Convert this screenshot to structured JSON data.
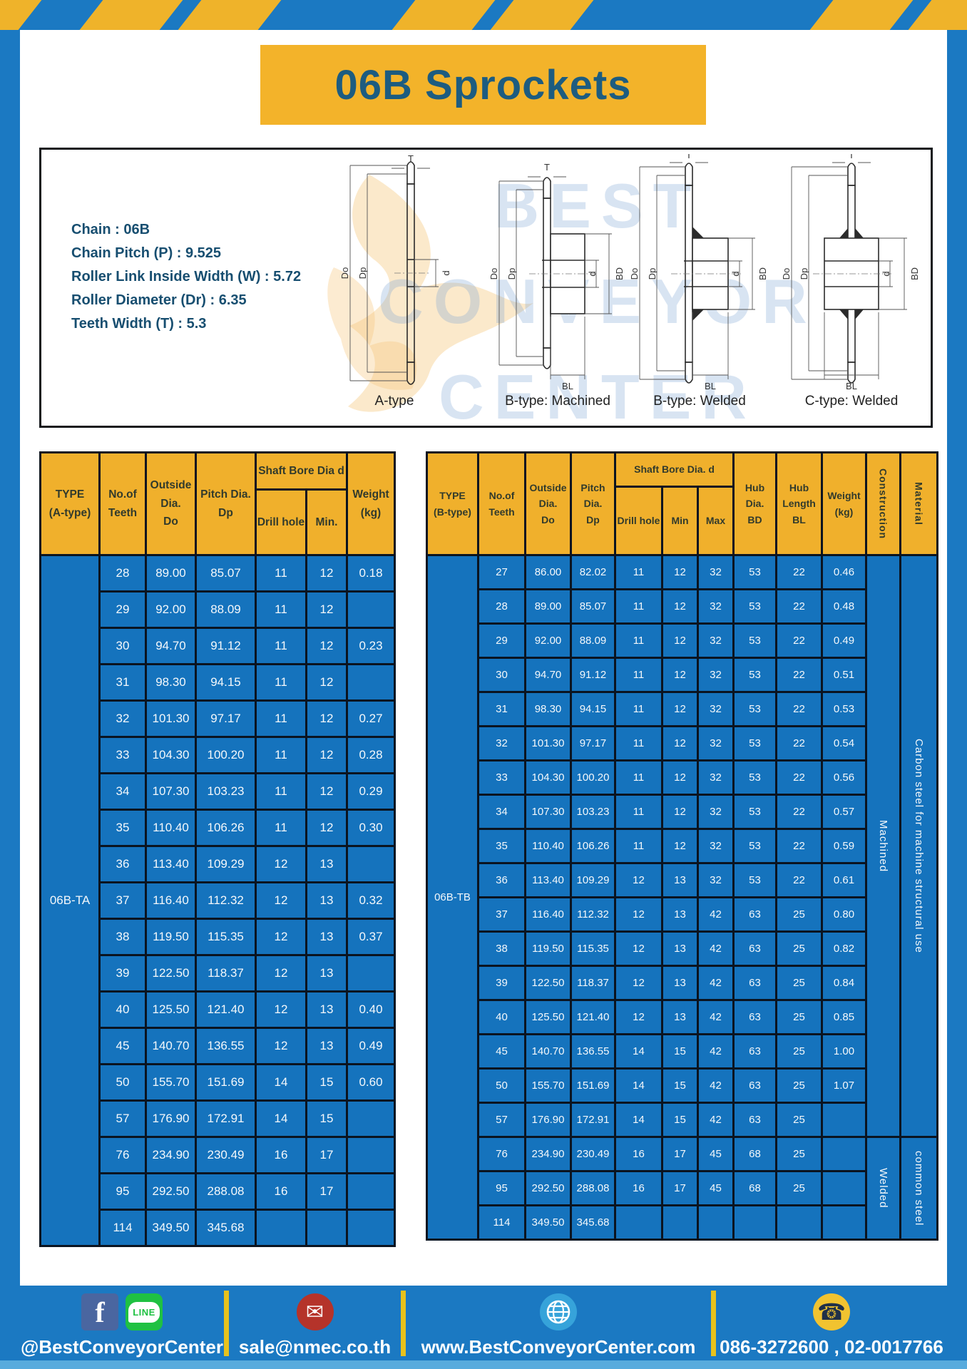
{
  "header": {
    "title": "06B Sprockets"
  },
  "specs": {
    "lines": [
      "Chain : 06B",
      "Chain Pitch (P) : 9.525",
      "Roller Link Inside Width (W) : 5.72",
      "Roller Diameter (Dr) : 6.35",
      "Teeth Width (T) : 5.3"
    ]
  },
  "diagrams": {
    "watermark": [
      "BEST",
      "CONVEYOR",
      "CENTER"
    ],
    "captions": [
      "A-type",
      "B-type: Machined",
      "B-type: Welded",
      "C-type: Welded"
    ],
    "dims": {
      "t": "T",
      "dia_o": "Do",
      "dia_p": "Dp",
      "d": "d",
      "bd": "BD",
      "bl": "BL"
    }
  },
  "table_a": {
    "type_label": "06B-TA",
    "headers": {
      "type": "TYPE\n(A-type)",
      "teeth": "No.of\nTeeth",
      "outside": "Outside\nDia.\nDo",
      "pitch": "Pitch Dia.\nDp",
      "shaft": "Shaft Bore Dia d",
      "drill": "Drill hole",
      "min": "Min.",
      "weight": "Weight\n(kg)"
    },
    "rows": [
      [
        "28",
        "89.00",
        "85.07",
        "11",
        "12",
        "0.18"
      ],
      [
        "29",
        "92.00",
        "88.09",
        "11",
        "12",
        ""
      ],
      [
        "30",
        "94.70",
        "91.12",
        "11",
        "12",
        "0.23"
      ],
      [
        "31",
        "98.30",
        "94.15",
        "11",
        "12",
        ""
      ],
      [
        "32",
        "101.30",
        "97.17",
        "11",
        "12",
        "0.27"
      ],
      [
        "33",
        "104.30",
        "100.20",
        "11",
        "12",
        "0.28"
      ],
      [
        "34",
        "107.30",
        "103.23",
        "11",
        "12",
        "0.29"
      ],
      [
        "35",
        "110.40",
        "106.26",
        "11",
        "12",
        "0.30"
      ],
      [
        "36",
        "113.40",
        "109.29",
        "12",
        "13",
        ""
      ],
      [
        "37",
        "116.40",
        "112.32",
        "12",
        "13",
        "0.32"
      ],
      [
        "38",
        "119.50",
        "115.35",
        "12",
        "13",
        "0.37"
      ],
      [
        "39",
        "122.50",
        "118.37",
        "12",
        "13",
        ""
      ],
      [
        "40",
        "125.50",
        "121.40",
        "12",
        "13",
        "0.40"
      ],
      [
        "45",
        "140.70",
        "136.55",
        "12",
        "13",
        "0.49"
      ],
      [
        "50",
        "155.70",
        "151.69",
        "14",
        "15",
        "0.60"
      ],
      [
        "57",
        "176.90",
        "172.91",
        "14",
        "15",
        ""
      ],
      [
        "76",
        "234.90",
        "230.49",
        "16",
        "17",
        ""
      ],
      [
        "95",
        "292.50",
        "288.08",
        "16",
        "17",
        ""
      ],
      [
        "114",
        "349.50",
        "345.68",
        "",
        "",
        ""
      ]
    ]
  },
  "table_b": {
    "type_label": "06B-TB",
    "headers": {
      "type": "TYPE\n(B-type)",
      "teeth": "No.of\nTeeth",
      "outside": "Outside\nDia.\nDo",
      "pitch": "Pitch\nDia.\nDp",
      "shaft": "Shaft Bore Dia. d",
      "drill": "Drill hole",
      "min": "Min",
      "max": "Max",
      "hub_dia": "Hub\nDia.\nBD",
      "hub_len": "Hub\nLength\nBL",
      "weight": "Weight\n(kg)",
      "construction": "Construction",
      "material": "Material"
    },
    "rows": [
      [
        "27",
        "86.00",
        "82.02",
        "11",
        "12",
        "32",
        "53",
        "22",
        "0.46"
      ],
      [
        "28",
        "89.00",
        "85.07",
        "11",
        "12",
        "32",
        "53",
        "22",
        "0.48"
      ],
      [
        "29",
        "92.00",
        "88.09",
        "11",
        "12",
        "32",
        "53",
        "22",
        "0.49"
      ],
      [
        "30",
        "94.70",
        "91.12",
        "11",
        "12",
        "32",
        "53",
        "22",
        "0.51"
      ],
      [
        "31",
        "98.30",
        "94.15",
        "11",
        "12",
        "32",
        "53",
        "22",
        "0.53"
      ],
      [
        "32",
        "101.30",
        "97.17",
        "11",
        "12",
        "32",
        "53",
        "22",
        "0.54"
      ],
      [
        "33",
        "104.30",
        "100.20",
        "11",
        "12",
        "32",
        "53",
        "22",
        "0.56"
      ],
      [
        "34",
        "107.30",
        "103.23",
        "11",
        "12",
        "32",
        "53",
        "22",
        "0.57"
      ],
      [
        "35",
        "110.40",
        "106.26",
        "11",
        "12",
        "32",
        "53",
        "22",
        "0.59"
      ],
      [
        "36",
        "113.40",
        "109.29",
        "12",
        "13",
        "32",
        "53",
        "22",
        "0.61"
      ],
      [
        "37",
        "116.40",
        "112.32",
        "12",
        "13",
        "42",
        "63",
        "25",
        "0.80"
      ],
      [
        "38",
        "119.50",
        "115.35",
        "12",
        "13",
        "42",
        "63",
        "25",
        "0.82"
      ],
      [
        "39",
        "122.50",
        "118.37",
        "12",
        "13",
        "42",
        "63",
        "25",
        "0.84"
      ],
      [
        "40",
        "125.50",
        "121.40",
        "12",
        "13",
        "42",
        "63",
        "25",
        "0.85"
      ],
      [
        "45",
        "140.70",
        "136.55",
        "14",
        "15",
        "42",
        "63",
        "25",
        "1.00"
      ],
      [
        "50",
        "155.70",
        "151.69",
        "14",
        "15",
        "42",
        "63",
        "25",
        "1.07"
      ],
      [
        "57",
        "176.90",
        "172.91",
        "14",
        "15",
        "42",
        "63",
        "25",
        ""
      ],
      [
        "76",
        "234.90",
        "230.49",
        "16",
        "17",
        "45",
        "68",
        "25",
        ""
      ],
      [
        "95",
        "292.50",
        "288.08",
        "16",
        "17",
        "45",
        "68",
        "25",
        ""
      ],
      [
        "114",
        "349.50",
        "345.68",
        "",
        "",
        "",
        "",
        "",
        ""
      ]
    ],
    "construction_spans": [
      {
        "label": "Machined",
        "rows": 17
      },
      {
        "label": "Welded",
        "rows": 3
      }
    ],
    "material_spans": [
      {
        "label": "Carbon steel for machine structural use",
        "rows": 17
      },
      {
        "label": "common steel",
        "rows": 3
      }
    ]
  },
  "footer": {
    "facebook_glyph": "f",
    "line_glyph": "LINE",
    "mail_glyph": "✉",
    "phone_glyph": "☎",
    "sections": [
      {
        "text": "@BestConveyorCenter"
      },
      {
        "text": "sale@nmec.co.th"
      },
      {
        "text": "www.BestConveyorCenter.com"
      },
      {
        "text": "086-3272600 , 02-0017766"
      }
    ]
  }
}
